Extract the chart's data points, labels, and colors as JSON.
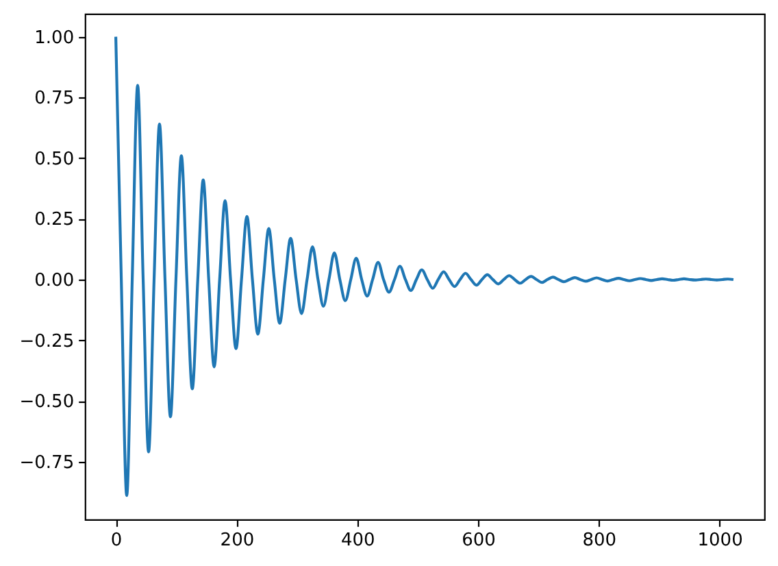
{
  "chart_data": {
    "type": "line",
    "x": [
      0,
      9.1,
      18.1,
      27.2,
      36.2,
      45.3,
      54.3,
      63.4,
      72.4,
      81.5,
      90.5,
      99.6,
      108.6,
      117.7,
      126.7,
      135.8,
      144.8,
      153.9,
      162.9,
      172.0,
      181,
      190.1,
      199.1,
      208.2,
      217.2,
      226.3,
      235.3,
      244.4,
      253.4,
      262.5,
      271.5,
      280.6,
      289.6,
      298.7,
      307.7,
      316.8,
      325.8,
      334.9,
      343.9,
      353,
      362,
      371.1,
      380.1,
      389.2,
      398.2,
      407.3,
      416.3,
      425.4,
      434.4,
      443.5,
      452.5,
      461.6,
      470.6,
      479.7,
      488.7,
      497.8,
      506.8,
      515.9,
      524.9,
      534,
      543,
      552.1,
      561.1,
      570.2,
      579.2,
      588.3,
      597.3,
      606.4,
      615.4,
      624.5,
      633.5,
      642.6,
      651.6,
      660.7,
      669.7,
      678.8,
      687.8,
      696.9,
      705.9,
      715,
      724,
      733.1,
      742.1,
      751.2,
      760.2,
      769.3,
      778.3,
      787.4,
      796.4,
      805.5,
      814.5,
      823.6,
      832.6,
      841.7,
      850.7,
      859.8,
      868.8,
      877.9,
      886.9,
      896,
      905,
      914.1,
      923.1,
      932.2,
      941.2,
      950.3,
      959.3,
      968.4,
      977.4,
      986.5,
      995.5,
      1004.6,
      1013.6,
      1023
    ],
    "series": [
      {
        "color": "#1f77b4",
        "values": [
          1.0,
          0,
          -0.89,
          0,
          0.8,
          0,
          -0.71,
          0,
          0.64,
          0,
          -0.565,
          0,
          0.51,
          0,
          -0.45,
          0,
          0.41,
          0,
          -0.36,
          0,
          0.325,
          0,
          -0.285,
          0,
          0.26,
          0,
          -0.225,
          0,
          0.21,
          0,
          -0.18,
          0,
          0.17,
          0,
          -0.14,
          0,
          0.135,
          0,
          -0.11,
          0,
          0.11,
          0,
          -0.087,
          0,
          0.088,
          0,
          -0.068,
          0,
          0.071,
          0,
          -0.052,
          0,
          0.055,
          0,
          -0.045,
          0,
          0.04,
          0,
          -0.036,
          0,
          0.032,
          0,
          -0.029,
          0,
          0.026,
          0,
          -0.023,
          0,
          0.02,
          0,
          -0.018,
          0,
          0.016,
          0,
          -0.015,
          0,
          0.013,
          0,
          -0.012,
          0,
          0.01,
          0,
          -0.009,
          0,
          0.008,
          0,
          -0.007,
          0,
          0.007,
          0,
          -0.006,
          0,
          0.005,
          0,
          -0.005,
          0,
          0.004,
          0,
          -0.004,
          0,
          0.003,
          0,
          -0.003,
          0,
          0.003,
          0,
          -0.002,
          0,
          0.002,
          0,
          -0.002,
          0,
          0.002,
          0
        ]
      }
    ],
    "xlim": [
      -51.15,
      1074.15
    ],
    "xticks": [
      0,
      200,
      400,
      600,
      800,
      1000
    ],
    "ylim": [
      -0.988,
      1.095
    ],
    "yticks": [
      {
        "value": -0.75,
        "label": "−0.75"
      },
      {
        "value": -0.5,
        "label": "−0.50"
      },
      {
        "value": -0.25,
        "label": "−0.25"
      },
      {
        "value": 0,
        "label": "0.00"
      },
      {
        "value": 0.25,
        "label": "0.25"
      },
      {
        "value": 0.5,
        "label": "0.50"
      },
      {
        "value": 0.75,
        "label": "0.75"
      },
      {
        "value": 1.0,
        "label": "1.00"
      }
    ]
  }
}
